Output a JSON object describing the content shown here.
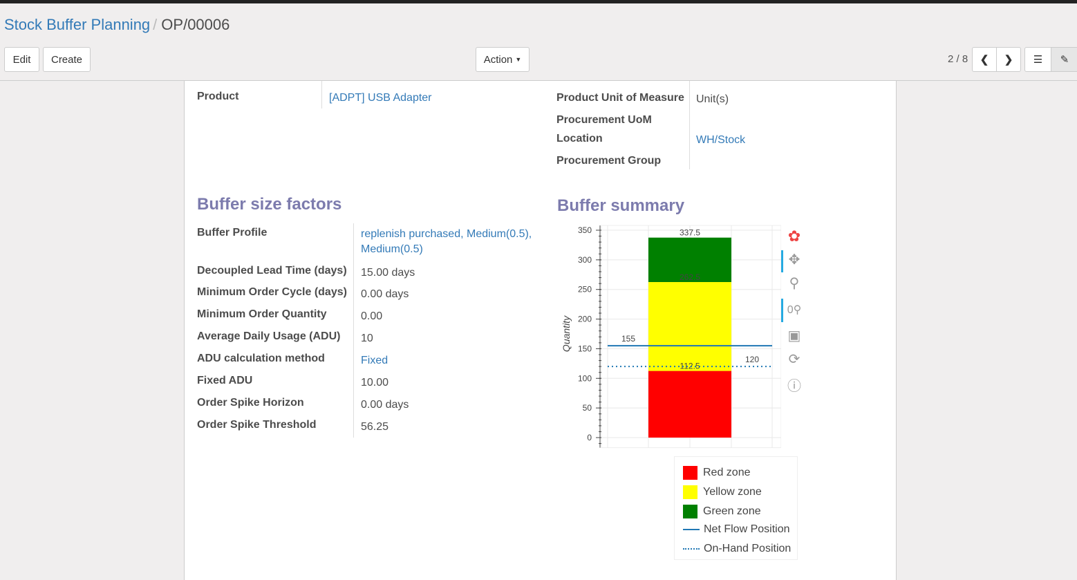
{
  "breadcrumb": {
    "parent": "Stock Buffer Planning",
    "current": "OP/00006"
  },
  "toolbar": {
    "edit": "Edit",
    "create": "Create",
    "action": "Action",
    "pager": "2 / 8"
  },
  "fields_top": {
    "product_label": "Product",
    "product_value": "[ADPT] USB Adapter",
    "uom_label": "Product Unit of Measure",
    "uom_value": "Unit(s)",
    "proc_uom_label": "Procurement UoM",
    "location_label": "Location",
    "location_value": "WH/Stock",
    "proc_group_label": "Procurement Group"
  },
  "factors": {
    "title": "Buffer size factors",
    "rows": [
      {
        "label": "Buffer Profile",
        "value": "replenish purchased, Medium(0.5), Medium(0.5)",
        "unit": "",
        "link": true
      },
      {
        "label": "Decoupled Lead Time (days)",
        "value": "15.00",
        "unit": "days"
      },
      {
        "label": "Minimum Order Cycle (days)",
        "value": "0.00",
        "unit": "days"
      },
      {
        "label": "Minimum Order Quantity",
        "value": "0.00",
        "unit": ""
      },
      {
        "label": "Average Daily Usage (ADU)",
        "value": "10",
        "unit": ""
      },
      {
        "label": "ADU calculation method",
        "value": "Fixed",
        "unit": "",
        "link": true
      },
      {
        "label": "Fixed ADU",
        "value": "10.00",
        "unit": ""
      },
      {
        "label": "Order Spike Horizon",
        "value": "0.00",
        "unit": "days"
      },
      {
        "label": "Order Spike Threshold",
        "value": "56.25",
        "unit": ""
      }
    ]
  },
  "summary": {
    "title": "Buffer summary"
  },
  "chart_data": {
    "type": "bar",
    "ylabel": "Quantity",
    "ylim": [
      -17,
      358
    ],
    "yticks": [
      0,
      50,
      100,
      150,
      200,
      250,
      300,
      350
    ],
    "stack": [
      {
        "name": "Red zone",
        "from": 0,
        "to": 112.5,
        "color": "#ff0000"
      },
      {
        "name": "Yellow zone",
        "from": 112.5,
        "to": 262.5,
        "color": "#ffff00"
      },
      {
        "name": "Green zone",
        "from": 262.5,
        "to": 337.5,
        "color": "#008000"
      }
    ],
    "bar_labels": [
      "112.5",
      "262.5",
      "337.5"
    ],
    "lines": [
      {
        "name": "Net Flow Position",
        "value": 155,
        "label": "155",
        "style": "solid",
        "color": "#1f77b4"
      },
      {
        "name": "On-Hand Position",
        "value": 120,
        "label": "120",
        "style": "dotted",
        "color": "#1f77b4"
      }
    ],
    "legend": [
      "Red zone",
      "Yellow zone",
      "Green zone",
      "Net Flow Position",
      "On-Hand Position"
    ],
    "legend_position": "bottom"
  }
}
